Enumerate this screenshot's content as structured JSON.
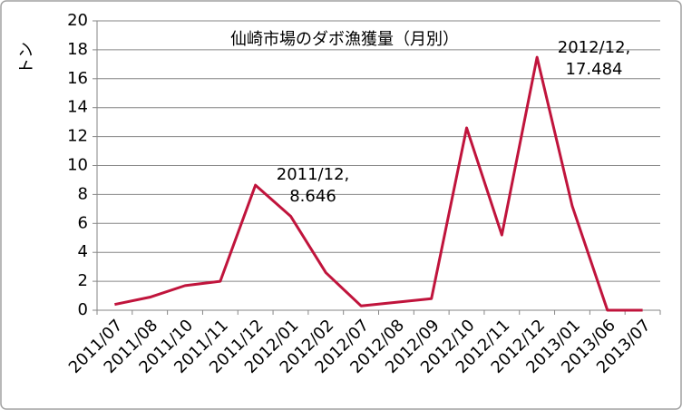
{
  "chart_data": {
    "type": "line",
    "title": "仙崎市場のダボ漁獲量（月別）",
    "y_label": "トン",
    "categories": [
      "2011/07",
      "2011/08",
      "2011/10",
      "2011/11",
      "2011/12",
      "2012/01",
      "2012/02",
      "2012/07",
      "2012/08",
      "2012/09",
      "2012/10",
      "2012/11",
      "2012/12",
      "2013/01",
      "2013/06",
      "2013/07"
    ],
    "series": [
      {
        "color": "#c0143c",
        "values": [
          0.4,
          0.9,
          1.7,
          2.0,
          8.646,
          6.5,
          2.6,
          0.3,
          0.55,
          0.8,
          12.6,
          5.2,
          17.484,
          7.2,
          0,
          0
        ]
      }
    ],
    "ylim": [
      0,
      20
    ],
    "yticks": [
      0,
      2,
      4,
      6,
      8,
      10,
      12,
      14,
      16,
      18,
      20
    ],
    "grid": true,
    "annotations": [
      {
        "lines": [
          "2011/12,",
          "8.646"
        ]
      },
      {
        "lines": [
          "2012/12,",
          "17.484"
        ]
      }
    ]
  }
}
